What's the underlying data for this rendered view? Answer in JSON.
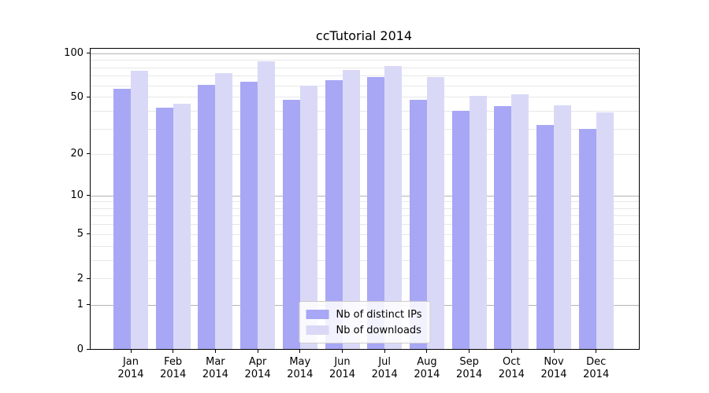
{
  "title": "ccTutorial 2014",
  "colors": {
    "ips_bar": "#a7a7f5",
    "downloads_bar": "#d9d9f7",
    "grid_decade": "#b2b2b2",
    "grid_minor": "#e7e7e7",
    "spine": "#000000",
    "legend_border": "#cccccc"
  },
  "chart_data": {
    "type": "bar",
    "title": "ccTutorial 2014",
    "categories": [
      "Jan",
      "Feb",
      "Mar",
      "Apr",
      "May",
      "Jun",
      "Jul",
      "Aug",
      "Sep",
      "Oct",
      "Nov",
      "Dec"
    ],
    "category_year": "2014",
    "series": [
      {
        "name": "Nb of distinct IPs",
        "color": "#a7a7f5",
        "values": [
          57,
          42,
          61,
          64,
          48,
          65,
          69,
          48,
          40,
          43,
          32,
          30
        ]
      },
      {
        "name": "Nb of downloads",
        "color": "#d9d9f7",
        "values": [
          76,
          45,
          73,
          88,
          60,
          77,
          82,
          69,
          51,
          52,
          44,
          39
        ]
      }
    ],
    "xlabel": "",
    "ylabel": "",
    "yscale": "log1p",
    "ylim": [
      0,
      107.3
    ],
    "yticks": [
      0,
      1,
      2,
      5,
      10,
      20,
      50,
      100
    ],
    "ytick_labels": [
      "0",
      "1",
      "2",
      "5",
      "10",
      "20",
      "50",
      "100"
    ],
    "decade_gridlines": [
      1,
      10,
      100
    ],
    "minor_gridlines": [
      2,
      3,
      4,
      5,
      6,
      7,
      8,
      9,
      20,
      30,
      40,
      50,
      60,
      70,
      80,
      90
    ],
    "grid": true,
    "legend_position": "lower center"
  },
  "legend": {
    "items": [
      {
        "label": "Nb of distinct IPs",
        "color": "#a7a7f5"
      },
      {
        "label": "Nb of downloads",
        "color": "#d9d9f7"
      }
    ]
  }
}
